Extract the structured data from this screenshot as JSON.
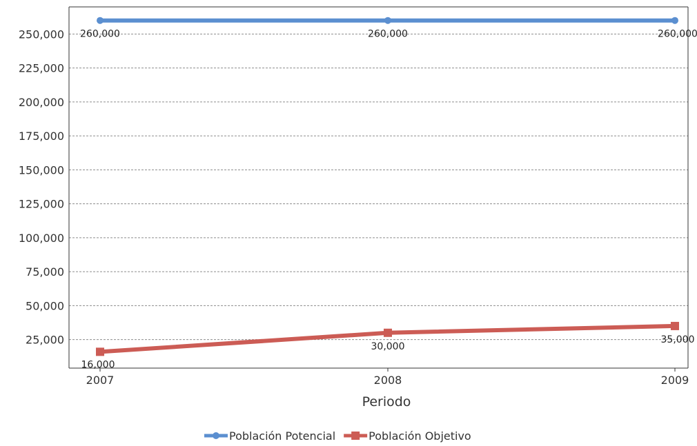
{
  "chart_data": {
    "type": "line",
    "title": "",
    "xlabel": "Periodo",
    "ylabel": "",
    "categories": [
      "2007",
      "2008",
      "2009"
    ],
    "ylim": [
      4000,
      270000
    ],
    "yticks": [
      25000,
      50000,
      75000,
      100000,
      125000,
      150000,
      175000,
      200000,
      225000,
      250000
    ],
    "ytick_labels": [
      "25,000",
      "50,000",
      "75,000",
      "100,000",
      "125,000",
      "150,000",
      "175,000",
      "200,000",
      "225,000",
      "250,000"
    ],
    "grid": true,
    "legend_position": "bottom-center",
    "series": [
      {
        "name": "Población Potencial",
        "values": [
          260000,
          260000,
          260000
        ],
        "labels": [
          "260,000",
          "260,000",
          "260,000"
        ],
        "color": "#5b8fd0",
        "marker": "circle"
      },
      {
        "name": "Población Objetivo",
        "values": [
          16000,
          30000,
          35000
        ],
        "labels": [
          "16,000",
          "30,000",
          "35,000"
        ],
        "color": "#cc5c55",
        "marker": "square"
      }
    ]
  }
}
